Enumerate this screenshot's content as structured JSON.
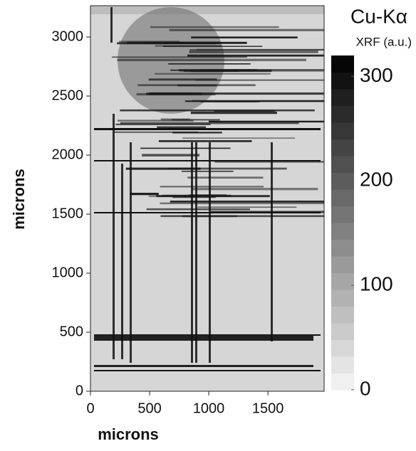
{
  "chart_data": {
    "type": "image",
    "title": "Cu-Kα",
    "subtitle": "XRF (a.u.)",
    "xlabel": "microns",
    "ylabel": "microns",
    "xlim": [
      0,
      1975
    ],
    "xticks": [
      0,
      500,
      1000,
      1500
    ],
    "ylim": [
      0,
      3265
    ],
    "yticks": [
      0,
      500,
      1000,
      1500,
      2000,
      2500,
      3000
    ],
    "clim": [
      0,
      320
    ],
    "cticks": [
      0,
      100,
      200,
      300
    ],
    "colormap": [
      "#f6f6f6",
      "#000000"
    ]
  }
}
